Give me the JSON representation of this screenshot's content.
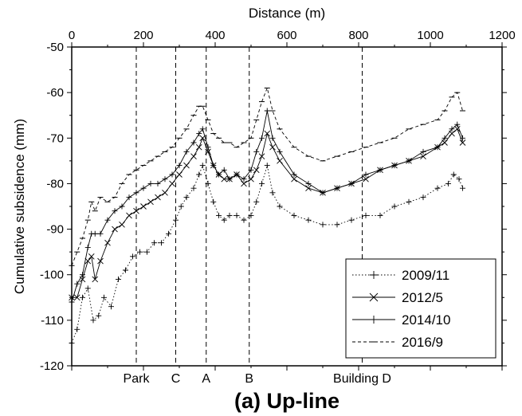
{
  "chart_data": {
    "type": "line",
    "title": "",
    "xlabel": "Distance (m)",
    "ylabel": "Cumulative subsidence (mm)",
    "caption": "(a) Up-line",
    "xlim": [
      0,
      1200
    ],
    "ylim": [
      -120,
      -50
    ],
    "xticks": [
      0,
      200,
      400,
      600,
      800,
      1000,
      1200
    ],
    "yticks": [
      -50,
      -60,
      -70,
      -80,
      -90,
      -100,
      -110,
      -120
    ],
    "x_axis_position": "top",
    "grid": false,
    "legend_position": "bottom-right",
    "reference_lines": [
      {
        "label": "Park",
        "x": 180
      },
      {
        "label": "C",
        "x": 290
      },
      {
        "label": "A",
        "x": 375
      },
      {
        "label": "B",
        "x": 495
      },
      {
        "label": "Building D",
        "x": 810
      }
    ],
    "series": [
      {
        "name": "2009/11",
        "style": "dotted-plus",
        "x": [
          0,
          15,
          30,
          45,
          60,
          75,
          90,
          110,
          130,
          150,
          170,
          190,
          210,
          230,
          250,
          270,
          290,
          305,
          320,
          340,
          355,
          365,
          380,
          395,
          410,
          425,
          440,
          460,
          480,
          500,
          515,
          530,
          545,
          560,
          580,
          620,
          660,
          700,
          740,
          780,
          820,
          860,
          900,
          940,
          980,
          1020,
          1050,
          1065,
          1080,
          1090
        ],
        "y": [
          -115,
          -112,
          -105,
          -103,
          -110,
          -109,
          -105,
          -107,
          -101,
          -99,
          -96,
          -95,
          -95,
          -93,
          -93,
          -91,
          -88,
          -85,
          -83,
          -81,
          -78,
          -76,
          -80,
          -84,
          -87,
          -88,
          -87,
          -87,
          -88,
          -87,
          -84,
          -80,
          -76,
          -82,
          -85,
          -87,
          -88,
          -89,
          -89,
          -88,
          -87,
          -87,
          -85,
          -84,
          -83,
          -81,
          -80,
          -78,
          -79,
          -81
        ]
      },
      {
        "name": "2012/5",
        "style": "solid-x",
        "x": [
          0,
          15,
          30,
          45,
          55,
          65,
          80,
          100,
          120,
          140,
          160,
          180,
          200,
          220,
          240,
          260,
          280,
          300,
          320,
          340,
          355,
          365,
          380,
          395,
          410,
          425,
          440,
          460,
          480,
          500,
          515,
          530,
          545,
          560,
          580,
          620,
          660,
          700,
          740,
          780,
          820,
          860,
          900,
          940,
          980,
          1020,
          1040,
          1060,
          1075,
          1090
        ],
        "y": [
          -105,
          -105,
          -101,
          -97,
          -96,
          -101,
          -97,
          -93,
          -90,
          -89,
          -87,
          -86,
          -85,
          -84,
          -83,
          -82,
          -80,
          -78,
          -76,
          -74,
          -72,
          -70,
          -73,
          -76,
          -78,
          -79,
          -79,
          -78,
          -80,
          -79,
          -77,
          -74,
          -69,
          -72,
          -75,
          -79,
          -81,
          -82,
          -81,
          -80,
          -79,
          -77,
          -76,
          -75,
          -74,
          -72,
          -71,
          -69,
          -68,
          -71
        ]
      },
      {
        "name": "2014/10",
        "style": "solid-plus",
        "x": [
          0,
          15,
          30,
          45,
          55,
          65,
          80,
          100,
          120,
          140,
          160,
          180,
          200,
          220,
          240,
          260,
          280,
          300,
          320,
          340,
          355,
          365,
          380,
          395,
          410,
          425,
          440,
          460,
          480,
          500,
          515,
          530,
          545,
          560,
          580,
          620,
          660,
          700,
          740,
          780,
          820,
          860,
          900,
          940,
          980,
          1020,
          1040,
          1060,
          1075,
          1090
        ],
        "y": [
          -106,
          -102,
          -100,
          -94,
          -91,
          -91,
          -91,
          -88,
          -86,
          -85,
          -83,
          -82,
          -81,
          -80,
          -80,
          -79,
          -78,
          -76,
          -73,
          -71,
          -69,
          -68,
          -72,
          -76,
          -78,
          -77,
          -79,
          -78,
          -79,
          -77,
          -73,
          -70,
          -64,
          -70,
          -73,
          -78,
          -80,
          -82,
          -81,
          -80,
          -78,
          -77,
          -76,
          -75,
          -73,
          -72,
          -70,
          -68,
          -67,
          -70
        ]
      },
      {
        "name": "2016/9",
        "style": "dashed-minus",
        "x": [
          0,
          15,
          30,
          45,
          55,
          65,
          80,
          100,
          120,
          140,
          160,
          180,
          200,
          220,
          240,
          260,
          280,
          300,
          320,
          340,
          355,
          365,
          380,
          395,
          410,
          425,
          440,
          460,
          480,
          500,
          515,
          530,
          545,
          560,
          580,
          620,
          660,
          700,
          740,
          780,
          820,
          860,
          900,
          940,
          980,
          1020,
          1040,
          1060,
          1075,
          1090
        ],
        "y": [
          -98,
          -95,
          -92,
          -88,
          -84,
          -86,
          -83,
          -84,
          -83,
          -80,
          -78,
          -77,
          -76,
          -75,
          -74,
          -73,
          -72,
          -70,
          -68,
          -65,
          -63,
          -63,
          -66,
          -69,
          -70,
          -71,
          -71,
          -72,
          -71,
          -70,
          -66,
          -62,
          -59,
          -64,
          -68,
          -72,
          -74,
          -75,
          -74,
          -73,
          -72,
          -71,
          -70,
          -68,
          -67,
          -66,
          -64,
          -61,
          -60,
          -64
        ]
      }
    ]
  }
}
